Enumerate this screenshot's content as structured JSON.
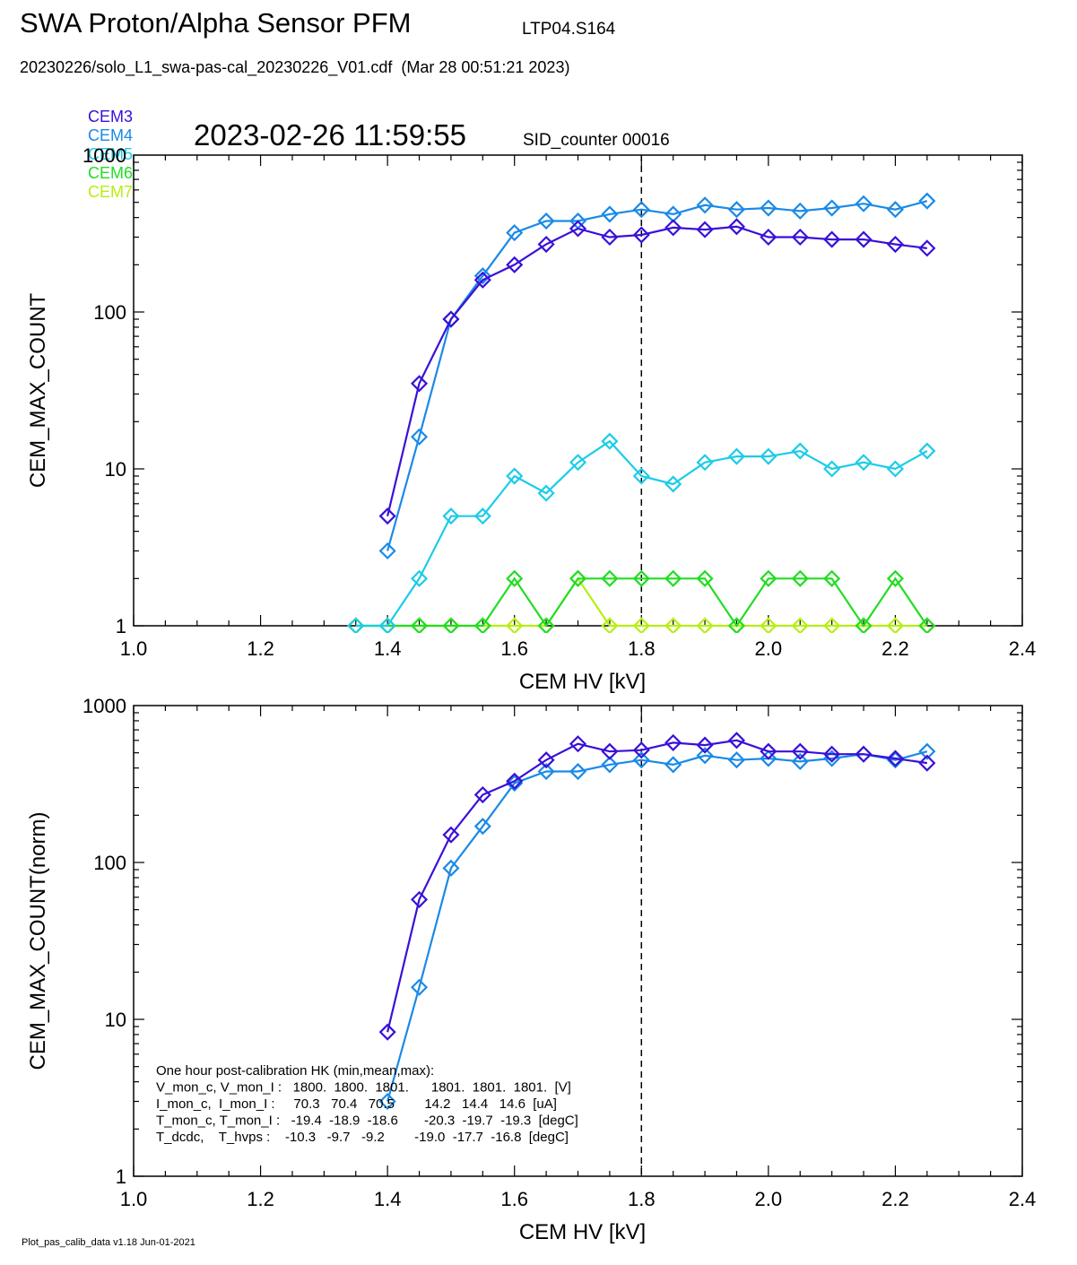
{
  "header": {
    "title": "SWA Proton/Alpha Sensor PFM",
    "subtitle": "LTP04.S164",
    "file_line": "20230226/solo_L1_swa-pas-cal_20230226_V01.cdf  (Mar 28 00:51:21 2023)",
    "timestamp": "2023-02-26 11:59:55",
    "sid_counter": "SID_counter 00016"
  },
  "legend": [
    {
      "label": "CEM3",
      "color": "#3a10d8"
    },
    {
      "label": "CEM4",
      "color": "#1a8ae6"
    },
    {
      "label": "CEM5",
      "color": "#1ccce8"
    },
    {
      "label": "CEM6",
      "color": "#22dd22"
    },
    {
      "label": "CEM7",
      "color": "#b8ee10"
    }
  ],
  "footer": "Plot_pas_calib_data v1.18 Jun-01-2021",
  "hk_text": [
    "One hour post-calibration HK (min,mean,max):",
    "V_mon_c, V_mon_I :   1800.  1800.  1801.      1801.  1801.  1801.  [V]",
    "I_mon_c,  I_mon_I :     70.3   70.4   70.5        14.2   14.4   14.6  [uA]",
    "T_mon_c, T_mon_I :   -19.4  -18.9  -18.6       -20.3  -19.7  -19.3  [degC]",
    "T_dcdc,    T_hvps :    -10.3   -9.7   -9.2        -19.0  -17.7  -16.8  [degC]"
  ],
  "chart_data": [
    {
      "type": "line",
      "xlabel": "CEM HV [kV]",
      "ylabel": "CEM_MAX_COUNT",
      "xlim": [
        1.0,
        2.4
      ],
      "ylim": [
        1,
        1000
      ],
      "yscale": "log",
      "xticks": [
        "1.0",
        "1.2",
        "1.4",
        "1.6",
        "1.8",
        "2.0",
        "2.2",
        "2.4"
      ],
      "yticks": [
        "1",
        "10",
        "100",
        "1000"
      ],
      "marker": "diamond",
      "vline": 1.8,
      "series": [
        {
          "name": "CEM3",
          "color": "#3a10d8",
          "x": [
            1.4,
            1.45,
            1.5,
            1.55,
            1.6,
            1.65,
            1.7,
            1.75,
            1.8,
            1.85,
            1.9,
            1.95,
            2.0,
            2.05,
            2.1,
            2.15,
            2.2,
            2.25
          ],
          "values": [
            5,
            35,
            90,
            160,
            200,
            270,
            340,
            300,
            310,
            345,
            335,
            350,
            300,
            300,
            290,
            290,
            270,
            255
          ]
        },
        {
          "name": "CEM4",
          "color": "#1a8ae6",
          "x": [
            1.4,
            1.45,
            1.5,
            1.55,
            1.6,
            1.65,
            1.7,
            1.75,
            1.8,
            1.85,
            1.9,
            1.95,
            2.0,
            2.05,
            2.1,
            2.15,
            2.2,
            2.25
          ],
          "values": [
            3,
            16,
            90,
            170,
            320,
            380,
            380,
            420,
            450,
            420,
            480,
            450,
            460,
            440,
            460,
            490,
            450,
            510
          ]
        },
        {
          "name": "CEM5",
          "color": "#1ccce8",
          "x": [
            1.35,
            1.4,
            1.45,
            1.5,
            1.55,
            1.6,
            1.65,
            1.7,
            1.75,
            1.8,
            1.85,
            1.9,
            1.95,
            2.0,
            2.05,
            2.1,
            2.15,
            2.2,
            2.25
          ],
          "values": [
            1,
            1,
            2,
            5,
            5,
            9,
            7,
            11,
            15,
            9,
            8,
            11,
            12,
            12,
            13,
            10,
            11,
            10,
            13
          ]
        },
        {
          "name": "CEM6",
          "color": "#22dd22",
          "x": [
            1.35,
            1.4,
            1.45,
            1.5,
            1.55,
            1.6,
            1.65,
            1.7,
            1.75,
            1.8,
            1.85,
            1.9,
            1.95,
            2.0,
            2.05,
            2.1,
            2.15,
            2.2,
            2.25
          ],
          "values": [
            1,
            1,
            1,
            1,
            1,
            2,
            1,
            2,
            2,
            2,
            2,
            2,
            1,
            2,
            2,
            2,
            1,
            2,
            1
          ]
        },
        {
          "name": "CEM7",
          "color": "#b8ee10",
          "x": [
            1.35,
            1.4,
            1.45,
            1.5,
            1.55,
            1.6,
            1.65,
            1.7,
            1.75,
            1.8,
            1.85,
            1.9,
            1.95,
            2.0,
            2.05,
            2.1,
            2.15,
            2.2,
            2.25
          ],
          "values": [
            1,
            1,
            1,
            1,
            1,
            1,
            1,
            2,
            1,
            1,
            1,
            1,
            1,
            1,
            1,
            1,
            1,
            1,
            1
          ]
        }
      ]
    },
    {
      "type": "line",
      "xlabel": "CEM HV [kV]",
      "ylabel": "CEM_MAX_COUNT(norm)",
      "xlim": [
        1.0,
        2.4
      ],
      "ylim": [
        1,
        1000
      ],
      "yscale": "log",
      "xticks": [
        "1.0",
        "1.2",
        "1.4",
        "1.6",
        "1.8",
        "2.0",
        "2.2",
        "2.4"
      ],
      "yticks": [
        "1",
        "10",
        "100",
        "1000"
      ],
      "marker": "diamond",
      "vline": 1.8,
      "series": [
        {
          "name": "CEM3",
          "color": "#3a10d8",
          "x": [
            1.4,
            1.45,
            1.5,
            1.55,
            1.6,
            1.65,
            1.7,
            1.75,
            1.8,
            1.85,
            1.9,
            1.95,
            2.0,
            2.05,
            2.1,
            2.15,
            2.2,
            2.25
          ],
          "values": [
            8.3,
            58,
            150,
            270,
            330,
            450,
            570,
            510,
            520,
            580,
            560,
            600,
            510,
            510,
            490,
            490,
            460,
            430
          ]
        },
        {
          "name": "CEM4",
          "color": "#1a8ae6",
          "x": [
            1.4,
            1.45,
            1.5,
            1.55,
            1.6,
            1.65,
            1.7,
            1.75,
            1.8,
            1.85,
            1.9,
            1.95,
            2.0,
            2.05,
            2.1,
            2.15,
            2.2,
            2.25
          ],
          "values": [
            3,
            16,
            92,
            170,
            320,
            380,
            380,
            420,
            450,
            420,
            480,
            450,
            460,
            440,
            460,
            490,
            450,
            510
          ]
        }
      ]
    }
  ]
}
